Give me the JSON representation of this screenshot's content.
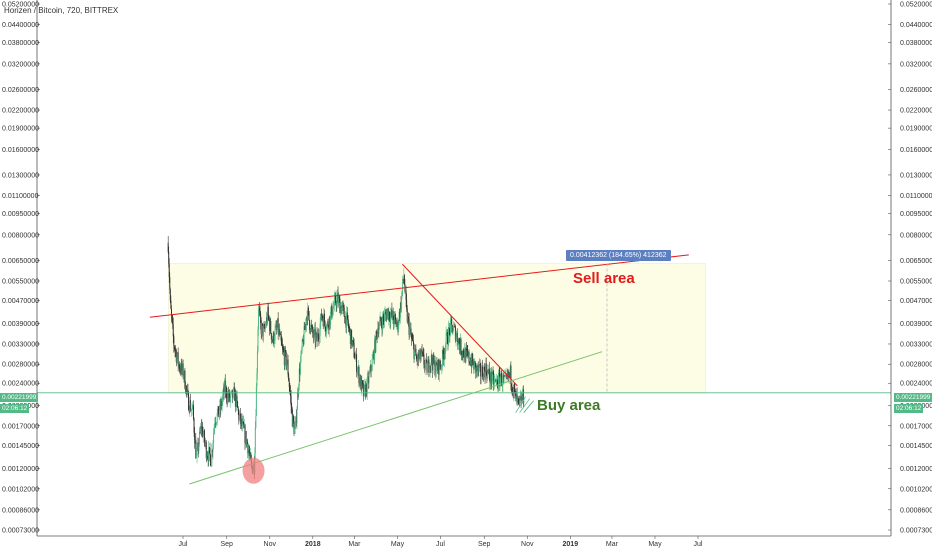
{
  "header": {
    "title": "Horizen / Bitcoin, 720, BITTREX"
  },
  "annotations": {
    "measure_label": "0.00412362 (184.65%) 412362",
    "sell_label": "Sell area",
    "buy_label": "Buy area"
  },
  "price_tags": {
    "current_price": "0.00221999",
    "countdown": "02:06:12"
  },
  "colors": {
    "candle_up": "#53b987",
    "candle_down": "#333333",
    "resistance_line": "#e31b1b",
    "support_line": "#7cc16c",
    "zone_fill": "#fdfde6",
    "measure_tag": "#5b7fc0",
    "price_tag": "#53b987",
    "sell_text": "#e31b1b",
    "buy_text": "#3f7a28"
  },
  "chart_data": {
    "type": "candlestick",
    "y_scale": "log",
    "y_ticks": [
      "0.05200000",
      "0.04400000",
      "0.03800000",
      "0.03200000",
      "0.02600000",
      "0.02200000",
      "0.01900000",
      "0.01600000",
      "0.01300000",
      "0.01100000",
      "0.00950000",
      "0.00800000",
      "0.00650000",
      "0.00550000",
      "0.00470000",
      "0.00390000",
      "0.00330000",
      "0.00280000",
      "0.00240000",
      "0.00200000",
      "0.00170000",
      "0.00145000",
      "0.00120000",
      "0.00102000",
      "0.00086000",
      "0.00073000"
    ],
    "x_ticks": [
      {
        "label": "Jul",
        "date": "2017-07-01"
      },
      {
        "label": "Sep",
        "date": "2017-09-01"
      },
      {
        "label": "Nov",
        "date": "2017-11-01"
      },
      {
        "label": "2018",
        "date": "2018-01-01",
        "bold": true
      },
      {
        "label": "Mar",
        "date": "2018-03-01"
      },
      {
        "label": "May",
        "date": "2018-05-01"
      },
      {
        "label": "Jul",
        "date": "2018-07-01"
      },
      {
        "label": "Sep",
        "date": "2018-09-01"
      },
      {
        "label": "Nov",
        "date": "2018-11-01"
      },
      {
        "label": "2019",
        "date": "2019-01-01",
        "bold": true
      },
      {
        "label": "Mar",
        "date": "2019-03-01"
      },
      {
        "label": "May",
        "date": "2019-05-01"
      },
      {
        "label": "Jul",
        "date": "2019-07-01"
      }
    ],
    "price_path": [
      [
        "2017-06-10",
        0.0075
      ],
      [
        "2017-06-13",
        0.0045
      ],
      [
        "2017-06-18",
        0.0033
      ],
      [
        "2017-06-25",
        0.0028
      ],
      [
        "2017-07-02",
        0.0026
      ],
      [
        "2017-07-08",
        0.0021
      ],
      [
        "2017-07-15",
        0.0019
      ],
      [
        "2017-07-20",
        0.0013
      ],
      [
        "2017-07-27",
        0.0017
      ],
      [
        "2017-08-03",
        0.0014
      ],
      [
        "2017-08-10",
        0.0013
      ],
      [
        "2017-08-15",
        0.0018
      ],
      [
        "2017-08-22",
        0.0019
      ],
      [
        "2017-08-29",
        0.0023
      ],
      [
        "2017-09-05",
        0.0021
      ],
      [
        "2017-09-12",
        0.0022
      ],
      [
        "2017-09-19",
        0.0018
      ],
      [
        "2017-09-26",
        0.0016
      ],
      [
        "2017-10-01",
        0.00145
      ],
      [
        "2017-10-06",
        0.0012
      ],
      [
        "2017-10-10",
        0.00125
      ],
      [
        "2017-10-13",
        0.0023
      ],
      [
        "2017-10-16",
        0.0045
      ],
      [
        "2017-10-19",
        0.0038
      ],
      [
        "2017-10-24",
        0.0036
      ],
      [
        "2017-10-29",
        0.0042
      ],
      [
        "2017-11-05",
        0.0034
      ],
      [
        "2017-11-12",
        0.0038
      ],
      [
        "2017-11-19",
        0.0031
      ],
      [
        "2017-11-26",
        0.0028
      ],
      [
        "2017-12-03",
        0.0018
      ],
      [
        "2017-12-07",
        0.0016
      ],
      [
        "2017-12-12",
        0.0025
      ],
      [
        "2017-12-17",
        0.0032
      ],
      [
        "2017-12-24",
        0.0043
      ],
      [
        "2017-12-31",
        0.0036
      ],
      [
        "2018-01-07",
        0.0034
      ],
      [
        "2018-01-14",
        0.0042
      ],
      [
        "2018-01-21",
        0.0038
      ],
      [
        "2018-01-28",
        0.0043
      ],
      [
        "2018-02-04",
        0.0048
      ],
      [
        "2018-02-11",
        0.0044
      ],
      [
        "2018-02-18",
        0.004
      ],
      [
        "2018-02-25",
        0.0034
      ],
      [
        "2018-03-04",
        0.0028
      ],
      [
        "2018-03-10",
        0.0024
      ],
      [
        "2018-03-14",
        0.0022
      ],
      [
        "2018-03-20",
        0.0024
      ],
      [
        "2018-03-27",
        0.0029
      ],
      [
        "2018-04-03",
        0.0038
      ],
      [
        "2018-04-10",
        0.004
      ],
      [
        "2018-04-17",
        0.0043
      ],
      [
        "2018-04-24",
        0.0041
      ],
      [
        "2018-05-01",
        0.0038
      ],
      [
        "2018-05-06",
        0.0046
      ],
      [
        "2018-05-10",
        0.0058
      ],
      [
        "2018-05-14",
        0.0042
      ],
      [
        "2018-05-21",
        0.0034
      ],
      [
        "2018-05-28",
        0.0029
      ],
      [
        "2018-06-04",
        0.003
      ],
      [
        "2018-06-11",
        0.0027
      ],
      [
        "2018-06-18",
        0.0029
      ],
      [
        "2018-06-25",
        0.0027
      ],
      [
        "2018-07-02",
        0.0028
      ],
      [
        "2018-07-09",
        0.0034
      ],
      [
        "2018-07-16",
        0.0038
      ],
      [
        "2018-07-23",
        0.0036
      ],
      [
        "2018-07-30",
        0.0032
      ],
      [
        "2018-08-06",
        0.003
      ],
      [
        "2018-08-13",
        0.0029
      ],
      [
        "2018-08-20",
        0.0027
      ],
      [
        "2018-08-27",
        0.0026
      ],
      [
        "2018-09-03",
        0.0027
      ],
      [
        "2018-09-10",
        0.0025
      ],
      [
        "2018-09-17",
        0.0024
      ],
      [
        "2018-09-24",
        0.0025
      ],
      [
        "2018-10-01",
        0.0024
      ],
      [
        "2018-10-08",
        0.0026
      ],
      [
        "2018-10-12",
        0.0023
      ],
      [
        "2018-10-16",
        0.0021
      ],
      [
        "2018-10-20",
        0.002
      ],
      [
        "2018-10-24",
        0.0021
      ],
      [
        "2018-10-28",
        0.00222
      ]
    ],
    "zone_box": {
      "from": "2017-06-10",
      "to": "2019-07-12",
      "price_low": 0.00222,
      "price_high": 0.00634
    },
    "resistance_line": [
      [
        "2017-05-15",
        0.0041
      ],
      [
        "2019-06-18",
        0.0068
      ]
    ],
    "support_line": [
      [
        "2017-07-10",
        0.00106
      ],
      [
        "2019-02-15",
        0.0031
      ]
    ],
    "down_trendline": [
      [
        "2018-05-08",
        0.0063
      ],
      [
        "2018-10-18",
        0.00235
      ]
    ],
    "horizontal_line": 0.00222,
    "measure_line": {
      "date": "2019-02-22",
      "from": 0.00222,
      "to": 0.00634
    },
    "buy_marker": {
      "date": "2017-10-09",
      "price": 0.00118
    }
  }
}
